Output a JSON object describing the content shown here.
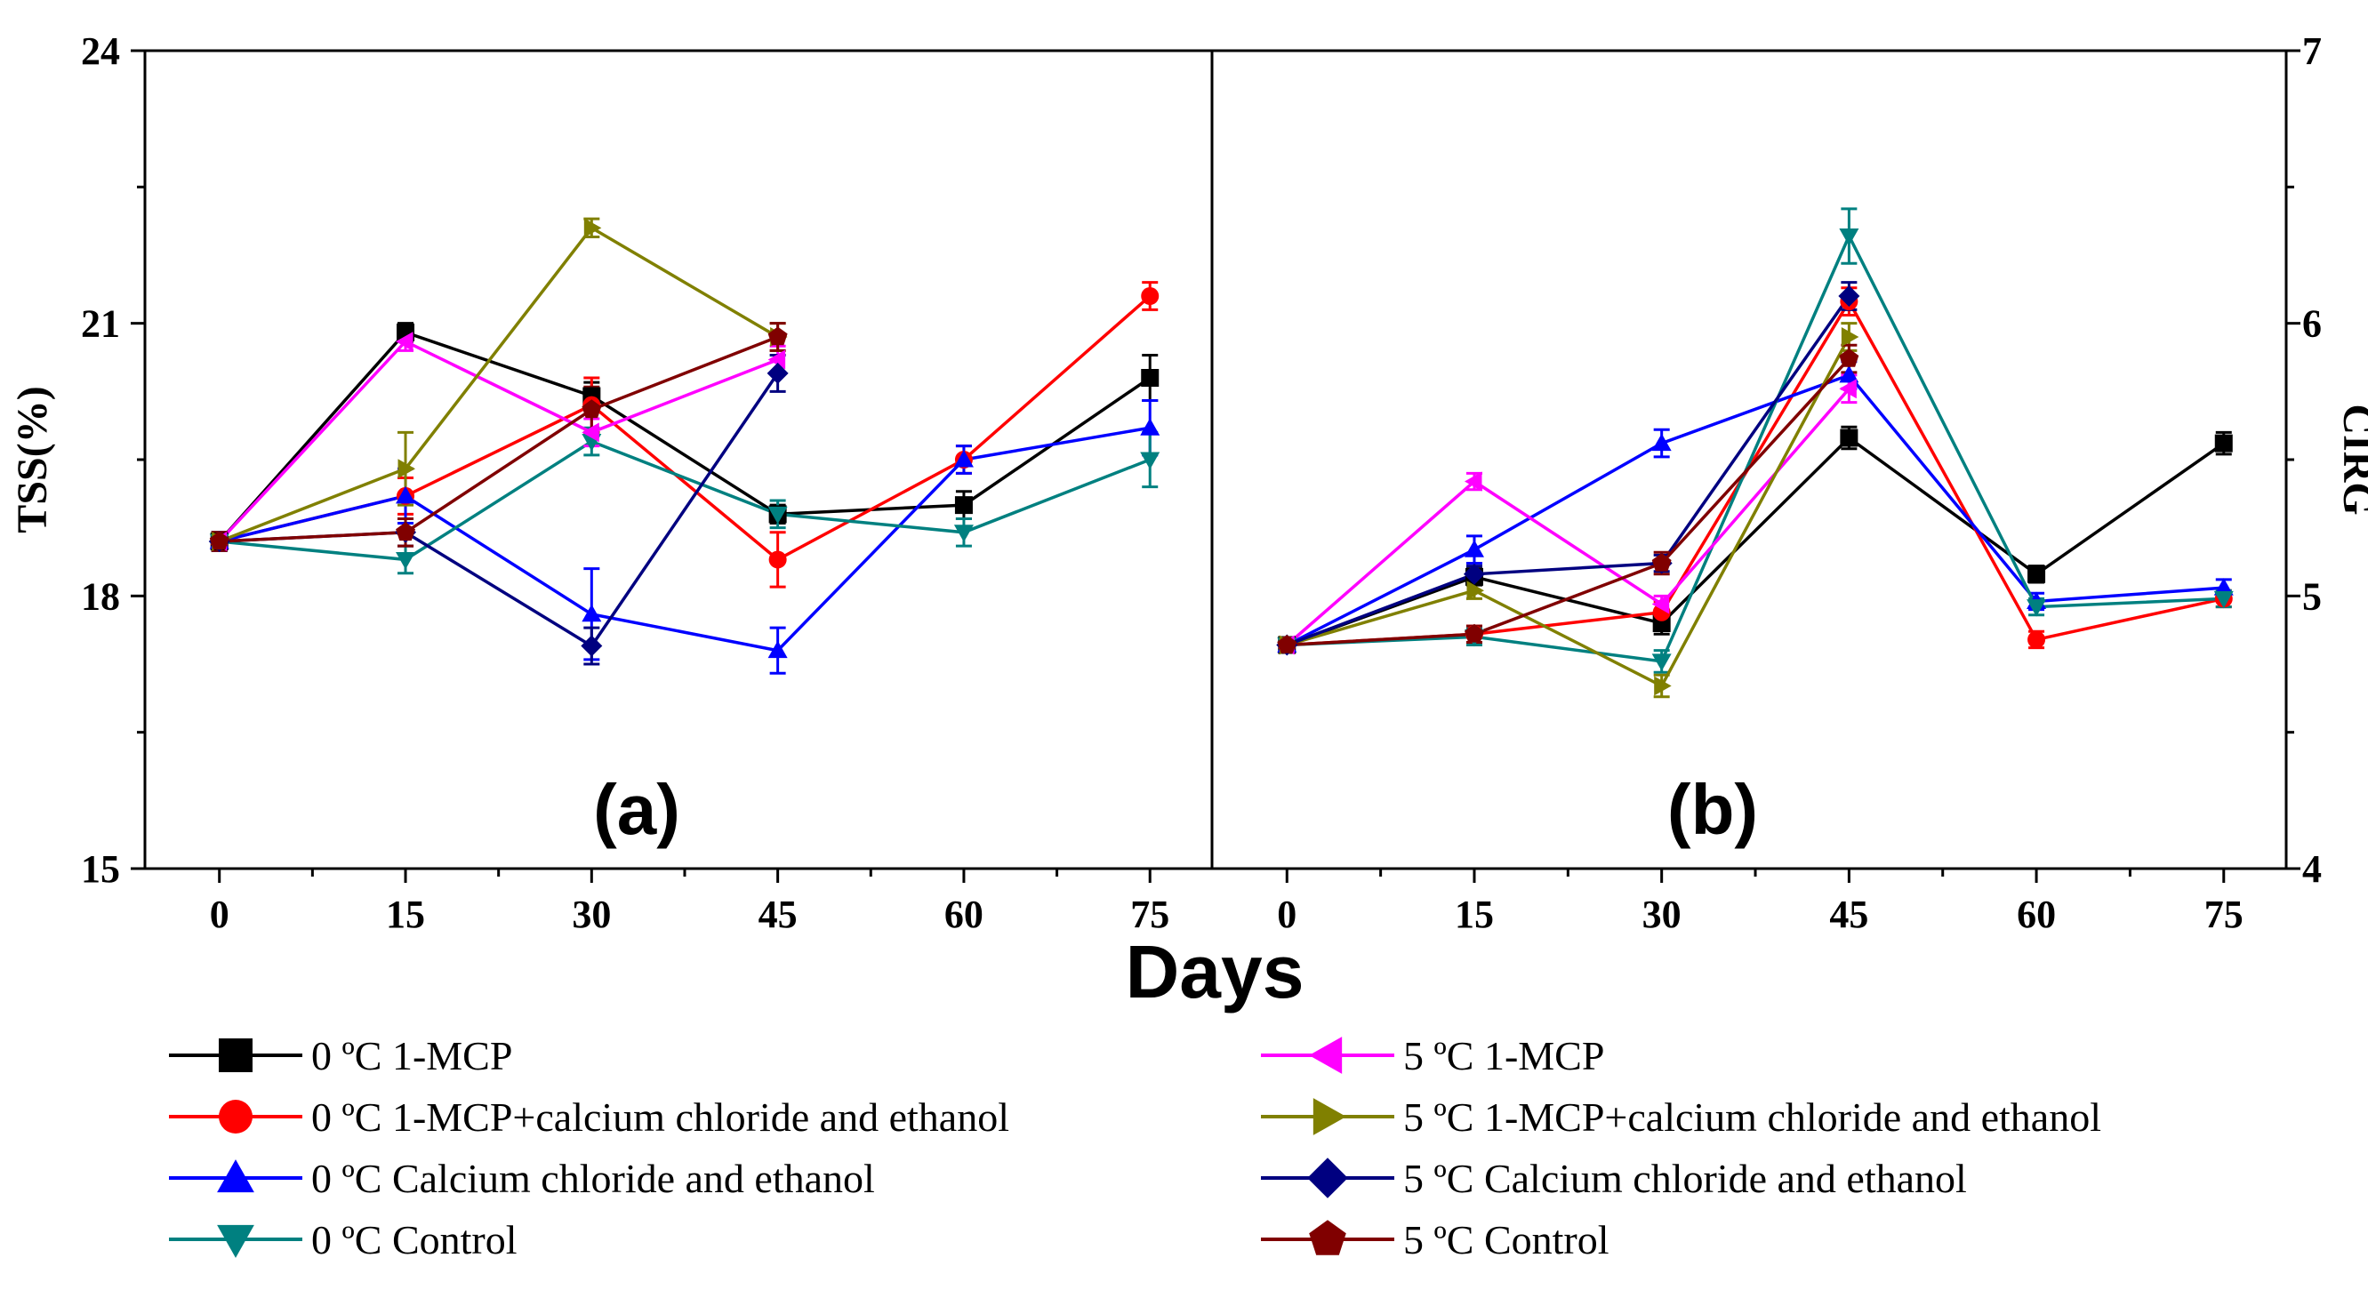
{
  "chart_data": {
    "type": "line",
    "shared_xlabel": "Days",
    "legend_placement": "bottom",
    "legend": [
      {
        "label": "0 ºC 1-MCP",
        "color": "#000000",
        "marker": "square"
      },
      {
        "label": "0 ºC 1-MCP+calcium chloride and ethanol",
        "color": "#ff0000",
        "marker": "circle"
      },
      {
        "label": "0 ºC Calcium chloride and ethanol",
        "color": "#0000ff",
        "marker": "triangle-up"
      },
      {
        "label": "0 ºC Control",
        "color": "#008080",
        "marker": "triangle-down"
      },
      {
        "label": "5 ºC 1-MCP",
        "color": "#ff00ff",
        "marker": "triangle-left"
      },
      {
        "label": "5 ºC 1-MCP+calcium chloride and ethanol",
        "color": "#808000",
        "marker": "triangle-right"
      },
      {
        "label": "5 ºC Calcium chloride and ethanol",
        "color": "#000080",
        "marker": "diamond"
      },
      {
        "label": "5 ºC Control",
        "color": "#800000",
        "marker": "pentagon"
      }
    ],
    "panels": [
      {
        "panel_label": "(a)",
        "ylabel": "TSS(%)",
        "y_axis_side": "left",
        "ylim": [
          15,
          24
        ],
        "yticks": [
          15,
          18,
          21,
          24
        ],
        "xlim": [
          -6,
          80
        ],
        "xticks": [
          0,
          15,
          30,
          45,
          60,
          75
        ],
        "series": [
          {
            "name": "0 ºC 1-MCP",
            "x": [
              0,
              15,
              30,
              45,
              60,
              75
            ],
            "values": [
              18.6,
              20.9,
              20.2,
              18.9,
              19.0,
              20.4
            ],
            "errors": [
              0.1,
              0.1,
              0.15,
              0.1,
              0.15,
              0.25
            ]
          },
          {
            "name": "0 ºC 1-MCP+calcium chloride and ethanol",
            "x": [
              0,
              15,
              30,
              45,
              60,
              75
            ],
            "values": [
              18.6,
              19.1,
              20.1,
              18.4,
              19.5,
              21.3
            ],
            "errors": [
              0.1,
              0.2,
              0.3,
              0.3,
              0.15,
              0.15
            ]
          },
          {
            "name": "0 ºC Calcium chloride and ethanol",
            "x": [
              0,
              15,
              30,
              45,
              60,
              75
            ],
            "values": [
              18.6,
              19.1,
              17.8,
              17.4,
              19.5,
              19.85
            ],
            "errors": [
              0.1,
              0.3,
              0.5,
              0.25,
              0.15,
              0.3
            ]
          },
          {
            "name": "0 ºC Control",
            "x": [
              0,
              15,
              30,
              45,
              60,
              75
            ],
            "values": [
              18.6,
              18.4,
              19.7,
              18.9,
              18.7,
              19.5
            ],
            "errors": [
              0.1,
              0.15,
              0.15,
              0.15,
              0.15,
              0.3
            ]
          },
          {
            "name": "5 ºC 1-MCP",
            "x": [
              0,
              15,
              30,
              45
            ],
            "values": [
              18.6,
              20.8,
              19.8,
              20.6
            ],
            "errors": [
              0.1,
              0.1,
              0.15,
              0.15
            ]
          },
          {
            "name": "5 ºC 1-MCP+calcium chloride and ethanol",
            "x": [
              0,
              15,
              30,
              45
            ],
            "values": [
              18.6,
              19.4,
              22.05,
              20.85
            ],
            "errors": [
              0.1,
              0.4,
              0.1,
              0.15
            ]
          },
          {
            "name": "5 ºC Calcium chloride and ethanol",
            "x": [
              0,
              15,
              30,
              45
            ],
            "values": [
              18.6,
              18.7,
              17.45,
              20.45
            ],
            "errors": [
              0.1,
              0.15,
              0.2,
              0.2
            ]
          },
          {
            "name": "5 ºC Control",
            "x": [
              0,
              15,
              30,
              45
            ],
            "values": [
              18.6,
              18.7,
              20.05,
              20.85
            ],
            "errors": [
              0.1,
              0.15,
              0.25,
              0.15
            ]
          }
        ]
      },
      {
        "panel_label": "(b)",
        "ylabel": "CIRG",
        "y_axis_side": "right",
        "ylim": [
          4,
          7
        ],
        "yticks": [
          4,
          5,
          6,
          7
        ],
        "xlim": [
          -6,
          80
        ],
        "xticks": [
          0,
          15,
          30,
          45,
          60,
          75
        ],
        "series": [
          {
            "name": "0 ºC 1-MCP",
            "x": [
              0,
              15,
              30,
              45,
              60,
              75
            ],
            "values": [
              4.82,
              5.07,
              4.9,
              5.58,
              5.08,
              5.56
            ],
            "errors": [
              0.02,
              0.03,
              0.04,
              0.04,
              0.03,
              0.04
            ]
          },
          {
            "name": "0 ºC 1-MCP+calcium chloride and ethanol",
            "x": [
              0,
              15,
              30,
              45,
              60,
              75
            ],
            "values": [
              4.82,
              4.86,
              4.94,
              6.08,
              4.84,
              4.99
            ],
            "errors": [
              0.02,
              0.03,
              0.04,
              0.05,
              0.03,
              0.03
            ]
          },
          {
            "name": "0 ºC Calcium chloride and ethanol",
            "x": [
              0,
              15,
              30,
              45,
              60,
              75
            ],
            "values": [
              4.82,
              5.17,
              5.56,
              5.81,
              4.98,
              5.03
            ],
            "errors": [
              0.02,
              0.05,
              0.05,
              0.05,
              0.03,
              0.03
            ]
          },
          {
            "name": "0 ºC Control",
            "x": [
              0,
              15,
              30,
              45,
              60,
              75
            ],
            "values": [
              4.82,
              4.85,
              4.76,
              6.32,
              4.96,
              4.99
            ],
            "errors": [
              0.02,
              0.03,
              0.04,
              0.1,
              0.03,
              0.03
            ]
          },
          {
            "name": "5 ºC 1-MCP",
            "x": [
              0,
              15,
              30,
              45
            ],
            "values": [
              4.82,
              5.42,
              4.97,
              5.76
            ],
            "errors": [
              0.02,
              0.03,
              0.03,
              0.05
            ]
          },
          {
            "name": "5 ºC 1-MCP+calcium chloride and ethanol",
            "x": [
              0,
              15,
              30,
              45
            ],
            "values": [
              4.82,
              5.02,
              4.67,
              5.95
            ],
            "errors": [
              0.02,
              0.03,
              0.04,
              0.05
            ]
          },
          {
            "name": "5 ºC Calcium chloride and ethanol",
            "x": [
              0,
              15,
              30,
              45
            ],
            "values": [
              4.82,
              5.08,
              5.12,
              6.1
            ],
            "errors": [
              0.02,
              0.03,
              0.03,
              0.05
            ]
          },
          {
            "name": "5 ºC Control",
            "x": [
              0,
              15,
              30,
              45
            ],
            "values": [
              4.82,
              4.86,
              5.12,
              5.87
            ],
            "errors": [
              0.02,
              0.03,
              0.04,
              0.05
            ]
          }
        ]
      }
    ]
  }
}
